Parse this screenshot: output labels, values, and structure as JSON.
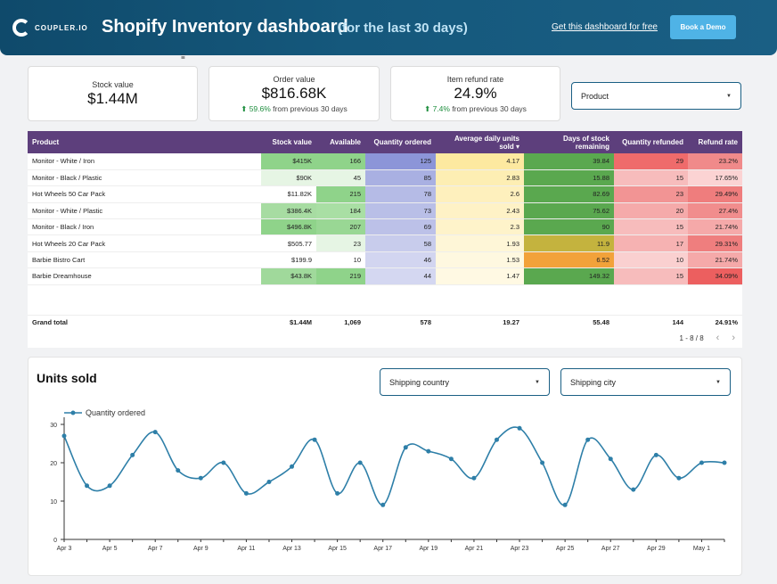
{
  "header": {
    "logo_text": "COUPLER.IO",
    "title": "Shopify Inventory dashboard",
    "subtitle": "(for the last 30 days)",
    "link_text": "Get this dashboard for free",
    "demo_button": "Book a Demo",
    "bg_color": "#15587c"
  },
  "filter_glyph": "⩸",
  "kpis": {
    "stock_value": {
      "label": "Stock value",
      "value": "$1.44M"
    },
    "order_value": {
      "label": "Order value",
      "value": "$816.68K",
      "delta": "59.6%",
      "delta_text": "from previous 30 days"
    },
    "refund_rate": {
      "label": "Item refund rate",
      "value": "24.9%",
      "delta": "7.4%",
      "delta_text": "from previous 30 days"
    }
  },
  "product_filter": {
    "label": "Product"
  },
  "table": {
    "headers": [
      "Product",
      "Stock value",
      "Available",
      "Quantity ordered",
      "Average daily units sold ▾",
      "Days of stock remaining",
      "Quantity refunded",
      "Refund rate"
    ],
    "rows": [
      [
        "Monitor - White / Iron",
        "$415K",
        "166",
        "125",
        "4.17",
        "39.84",
        "29",
        "23.2%"
      ],
      [
        "Monitor - Black / Plastic",
        "$90K",
        "45",
        "85",
        "2.83",
        "15.88",
        "15",
        "17.65%"
      ],
      [
        "Hot Wheels 50 Car Pack",
        "$11.82K",
        "215",
        "78",
        "2.6",
        "82.69",
        "23",
        "29.49%"
      ],
      [
        "Monitor - White / Plastic",
        "$386.4K",
        "184",
        "73",
        "2.43",
        "75.62",
        "20",
        "27.4%"
      ],
      [
        "Monitor - Black / Iron",
        "$496.8K",
        "207",
        "69",
        "2.3",
        "90",
        "15",
        "21.74%"
      ],
      [
        "Hot Wheels 20 Car Pack",
        "$505.77",
        "23",
        "58",
        "1.93",
        "11.9",
        "17",
        "29.31%"
      ],
      [
        "Barbie Bistro Cart",
        "$199.9",
        "10",
        "46",
        "1.53",
        "6.52",
        "10",
        "21.74%"
      ],
      [
        "Barbie Dreamhouse",
        "$43.8K",
        "219",
        "44",
        "1.47",
        "149.32",
        "15",
        "34.09%"
      ]
    ],
    "cell_colors": [
      [
        "#ffffff",
        "#8fd38a",
        "#8fd38a",
        "#8c95d8",
        "#fde9a0",
        "#5aa84f",
        "#ef6b6b",
        "#f08a8a"
      ],
      [
        "#ffffff",
        "#e6f5e4",
        "#e6f5e4",
        "#a9b0e2",
        "#fdeeb3",
        "#5aa84f",
        "#f7bcbc",
        "#fbd3d3"
      ],
      [
        "#ffffff",
        "#ffffff",
        "#8fd38a",
        "#b5bbe6",
        "#fef0bd",
        "#5aa84f",
        "#f29494",
        "#ef7d7d"
      ],
      [
        "#ffffff",
        "#a7dca2",
        "#a9dfa4",
        "#b9bfe7",
        "#fef2c6",
        "#5aa84f",
        "#f5aaaa",
        "#f18d8d"
      ],
      [
        "#ffffff",
        "#8fd38a",
        "#99d794",
        "#bcc1e8",
        "#fef3ca",
        "#5aa84f",
        "#f7bcbc",
        "#f5a9a9"
      ],
      [
        "#ffffff",
        "#ffffff",
        "#e6f5e4",
        "#c8ccec",
        "#fef6d7",
        "#c4b33e",
        "#f6b2b2",
        "#ef7e7e"
      ],
      [
        "#ffffff",
        "#ffffff",
        "#ffffff",
        "#d2d5f0",
        "#fef8e0",
        "#f2a23a",
        "#fad0d0",
        "#f5a9a9"
      ],
      [
        "#ffffff",
        "#a0d99b",
        "#8fd38a",
        "#d4d7f1",
        "#fff9e3",
        "#5aa84f",
        "#f7bcbc",
        "#ec5f5f"
      ]
    ],
    "total": [
      "Grand total",
      "$1.44M",
      "1,069",
      "578",
      "19.27",
      "55.48",
      "144",
      "24.91%"
    ],
    "pager": "1 - 8 / 8",
    "header_color": "#5d3f7c"
  },
  "chart_filters": {
    "country": "Shipping country",
    "city": "Shipping city"
  },
  "chart_data": {
    "type": "line",
    "title": "Units sold",
    "series": [
      {
        "name": "Quantity ordered",
        "values": [
          27,
          14,
          14,
          22,
          28,
          18,
          16,
          20,
          12,
          15,
          19,
          26,
          12,
          20,
          9,
          24,
          23,
          21,
          16,
          26,
          29,
          20,
          9,
          26,
          21,
          13,
          22,
          16,
          20,
          20
        ]
      }
    ],
    "x": [
      "Apr 3",
      "Apr 4",
      "Apr 5",
      "Apr 6",
      "Apr 7",
      "Apr 8",
      "Apr 9",
      "Apr 10",
      "Apr 11",
      "Apr 12",
      "Apr 13",
      "Apr 14",
      "Apr 15",
      "Apr 16",
      "Apr 17",
      "Apr 18",
      "Apr 19",
      "Apr 20",
      "Apr 21",
      "Apr 22",
      "Apr 23",
      "Apr 24",
      "Apr 25",
      "Apr 26",
      "Apr 27",
      "Apr 28",
      "Apr 29",
      "Apr 30",
      "May 1",
      "May 2"
    ],
    "x_tick_labels": [
      "Apr 3",
      "Apr 5",
      "Apr 7",
      "Apr 9",
      "Apr 11",
      "Apr 13",
      "Apr 15",
      "Apr 17",
      "Apr 19",
      "Apr 21",
      "Apr 23",
      "Apr 25",
      "Apr 27",
      "Apr 29",
      "May 1"
    ],
    "y_ticks": [
      0,
      10,
      20,
      30
    ],
    "ylim": [
      0,
      30
    ],
    "legend": "top-left",
    "line_color": "#2e7fa8"
  }
}
